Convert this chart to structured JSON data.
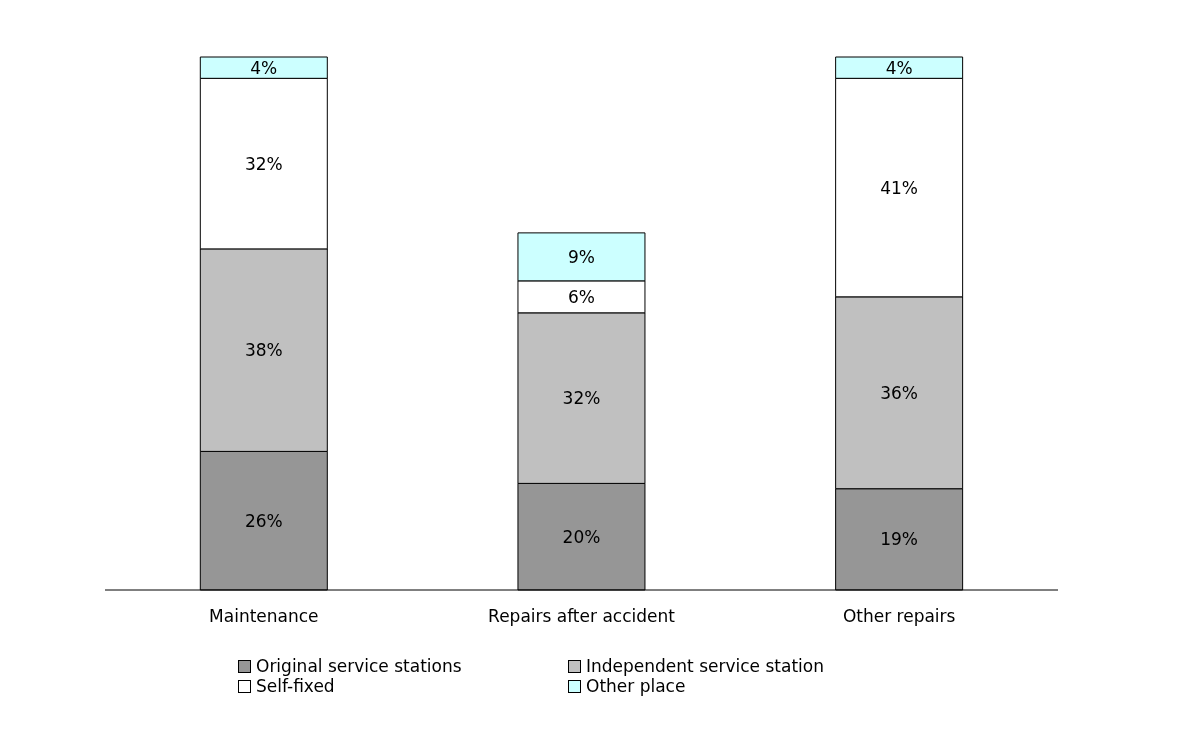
{
  "chart_data": {
    "type": "bar",
    "stacked": true,
    "categories": [
      "Maintenance",
      "Repairs after accident",
      "Other repairs"
    ],
    "series": [
      {
        "name": "Original service stations",
        "color": "#969696",
        "values": [
          26,
          20,
          19
        ],
        "value_labels": [
          "26%",
          "20%",
          "19%"
        ]
      },
      {
        "name": "Independent service station",
        "color": "#c0c0c0",
        "values": [
          38,
          32,
          36
        ],
        "value_labels": [
          "38%",
          "32%",
          "36%"
        ]
      },
      {
        "name": "Self-fixed",
        "color": "#ffffff",
        "values": [
          32,
          6,
          41
        ],
        "value_labels": [
          "32%",
          "6%",
          "41%"
        ]
      },
      {
        "name": "Other place",
        "color": "#ccffff",
        "values": [
          4,
          9,
          4
        ],
        "value_labels": [
          "4%",
          "9%",
          "4%"
        ]
      }
    ],
    "legend": "bottom"
  }
}
